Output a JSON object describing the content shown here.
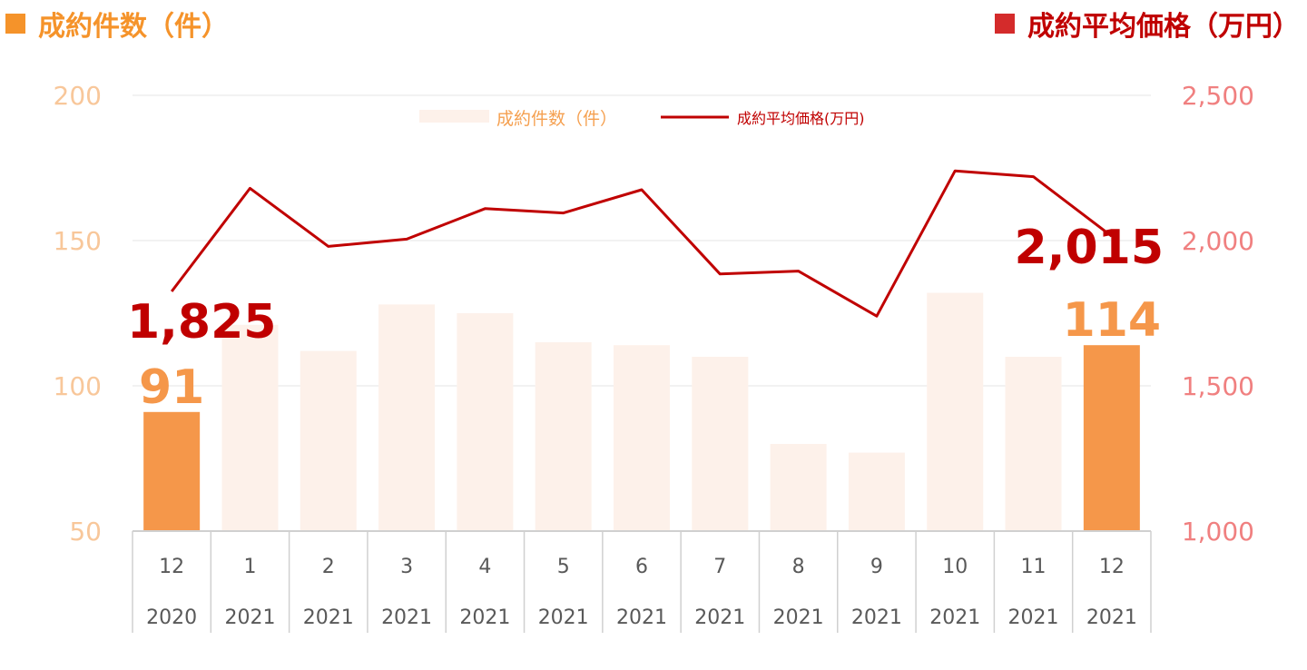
{
  "header": {
    "left_title": "成約件数（件）",
    "right_title": "成約平均価格（万円）"
  },
  "colors": {
    "bar_highlight": "#f5974a",
    "bar_light": "#fdf1ea",
    "line": "#c00000",
    "left_axis_text": "#f8c79a",
    "right_axis_text": "#f08080",
    "callout_count": "#f5974a",
    "callout_price": "#c00000",
    "category_text": "#595959"
  },
  "chart_data": {
    "type": "bar+line",
    "legend": {
      "position": "top-center",
      "entries": [
        "成約件数（件）",
        "成約平均価格(万円)"
      ]
    },
    "y_left": {
      "min": 50,
      "max": 200,
      "ticks": [
        "50",
        "100",
        "150",
        "200"
      ],
      "tick_values": [
        50,
        100,
        150,
        200
      ]
    },
    "y_right": {
      "min": 1000,
      "max": 2500,
      "ticks": [
        "1,000",
        "1,500",
        "2,000",
        "2,500"
      ],
      "tick_values": [
        1000,
        1500,
        2000,
        2500
      ]
    },
    "grid": true,
    "categories": [
      {
        "month": "12",
        "year": "2020"
      },
      {
        "month": "1",
        "year": "2021"
      },
      {
        "month": "2",
        "year": "2021"
      },
      {
        "month": "3",
        "year": "2021"
      },
      {
        "month": "4",
        "year": "2021"
      },
      {
        "month": "5",
        "year": "2021"
      },
      {
        "month": "6",
        "year": "2021"
      },
      {
        "month": "7",
        "year": "2021"
      },
      {
        "month": "8",
        "year": "2021"
      },
      {
        "month": "9",
        "year": "2021"
      },
      {
        "month": "10",
        "year": "2021"
      },
      {
        "month": "11",
        "year": "2021"
      },
      {
        "month": "12",
        "year": "2021"
      }
    ],
    "series": [
      {
        "name": "成約件数（件）",
        "type": "bar",
        "axis": "left",
        "values": [
          91,
          121,
          112,
          128,
          125,
          115,
          114,
          110,
          80,
          77,
          132,
          110,
          114
        ],
        "highlight": [
          true,
          false,
          false,
          false,
          false,
          false,
          false,
          false,
          false,
          false,
          false,
          false,
          true
        ]
      },
      {
        "name": "成約平均価格(万円)",
        "type": "line",
        "axis": "right",
        "values": [
          1825,
          2180,
          1980,
          2005,
          2110,
          2095,
          2175,
          1885,
          1895,
          1740,
          2240,
          2220,
          2015
        ]
      }
    ],
    "callouts": [
      {
        "series": 1,
        "index": 0,
        "text": "1,825"
      },
      {
        "series": 0,
        "index": 0,
        "text": "91"
      },
      {
        "series": 1,
        "index": 12,
        "text": "2,015"
      },
      {
        "series": 0,
        "index": 12,
        "text": "114"
      }
    ]
  }
}
